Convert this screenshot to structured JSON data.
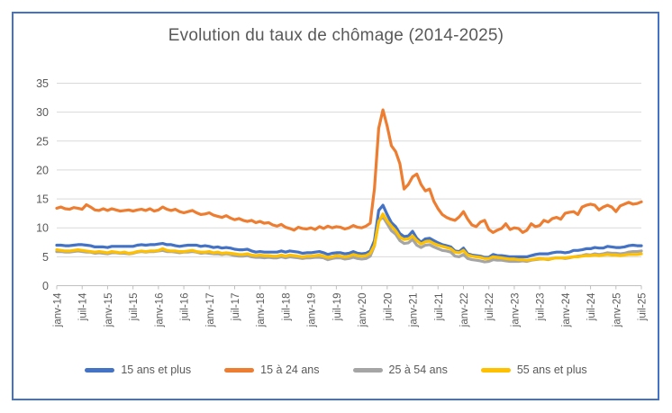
{
  "frame": {
    "border_color": "#4472C4",
    "background": "#ffffff"
  },
  "chart_data": {
    "type": "line",
    "title": "Evolution du taux de chômage (2014-2025)",
    "xlabel": "",
    "ylabel": "",
    "ylim": [
      0,
      35
    ],
    "y_ticks": [
      0,
      5,
      10,
      15,
      20,
      25,
      30,
      35
    ],
    "grid": true,
    "gridline_color": "#D9D9D9",
    "axis_color": "#BFBFBF",
    "tick_label_color": "#595959",
    "title_color": "#595959",
    "legend_position": "bottom",
    "n_points": 139,
    "x_tick_every": 6,
    "x_tick_labels": [
      "janv-14",
      "juil-14",
      "janv-15",
      "juil-15",
      "janv-16",
      "juil-16",
      "janv-17",
      "juil-17",
      "janv-18",
      "juil-18",
      "janv-19",
      "juil-19",
      "janv-20",
      "juil-20",
      "janv-21",
      "juil-21",
      "janv-22",
      "juil-22",
      "janv-23",
      "juil-23",
      "janv-24",
      "juil-24",
      "janv-25",
      "juil-25"
    ],
    "series": [
      {
        "name": "15 ans et plus",
        "color": "#4472C4",
        "values": [
          7.0,
          7.0,
          6.9,
          6.9,
          7.0,
          7.1,
          7.1,
          7.0,
          6.9,
          6.7,
          6.7,
          6.7,
          6.6,
          6.8,
          6.8,
          6.8,
          6.8,
          6.8,
          6.8,
          7.0,
          7.1,
          7.0,
          7.1,
          7.1,
          7.2,
          7.3,
          7.1,
          7.1,
          6.9,
          6.8,
          6.9,
          7.0,
          7.0,
          7.0,
          6.8,
          6.9,
          6.8,
          6.6,
          6.7,
          6.5,
          6.6,
          6.5,
          6.3,
          6.2,
          6.2,
          6.3,
          6.0,
          5.8,
          5.9,
          5.8,
          5.8,
          5.8,
          5.8,
          6.0,
          5.8,
          6.0,
          5.9,
          5.8,
          5.6,
          5.7,
          5.7,
          5.8,
          5.9,
          5.7,
          5.4,
          5.6,
          5.7,
          5.7,
          5.5,
          5.6,
          5.9,
          5.6,
          5.5,
          5.6,
          6.0,
          7.8,
          13.0,
          13.9,
          12.3,
          10.9,
          10.2,
          9.0,
          8.5,
          8.6,
          9.4,
          8.2,
          7.5,
          8.1,
          8.2,
          7.8,
          7.4,
          7.1,
          6.9,
          6.7,
          6.0,
          5.9,
          6.5,
          5.5,
          5.3,
          5.2,
          5.1,
          4.9,
          4.9,
          5.4,
          5.2,
          5.2,
          5.1,
          5.0,
          5.0,
          5.0,
          5.0,
          5.0,
          5.2,
          5.4,
          5.5,
          5.5,
          5.5,
          5.7,
          5.8,
          5.8,
          5.7,
          5.8,
          6.1,
          6.1,
          6.2,
          6.4,
          6.4,
          6.6,
          6.5,
          6.5,
          6.8,
          6.7,
          6.6,
          6.6,
          6.7,
          6.9,
          7.0,
          6.9,
          6.9
        ]
      },
      {
        "name": "15 à 24 ans",
        "color": "#ED7D31",
        "values": [
          13.4,
          13.6,
          13.3,
          13.2,
          13.5,
          13.4,
          13.2,
          14.0,
          13.6,
          13.1,
          13.0,
          13.3,
          13.0,
          13.3,
          13.1,
          12.9,
          13.0,
          13.1,
          12.9,
          13.1,
          13.2,
          13.0,
          13.3,
          12.9,
          13.1,
          13.6,
          13.2,
          13.0,
          13.2,
          12.8,
          12.6,
          12.8,
          13.0,
          12.6,
          12.3,
          12.4,
          12.6,
          12.2,
          12.0,
          11.8,
          12.1,
          11.7,
          11.4,
          11.6,
          11.3,
          11.1,
          11.3,
          10.9,
          11.1,
          10.8,
          10.9,
          10.5,
          10.3,
          10.6,
          10.1,
          9.9,
          9.6,
          10.1,
          9.9,
          9.8,
          10.0,
          9.7,
          10.2,
          9.9,
          10.3,
          10.0,
          10.2,
          10.1,
          9.8,
          10.0,
          10.4,
          10.1,
          10.0,
          10.3,
          10.8,
          16.8,
          27.2,
          30.4,
          27.6,
          24.2,
          23.2,
          21.1,
          16.7,
          17.5,
          18.8,
          19.3,
          17.5,
          16.4,
          16.7,
          14.6,
          13.3,
          12.3,
          11.8,
          11.5,
          11.3,
          11.9,
          12.8,
          11.5,
          10.5,
          10.2,
          11.0,
          11.3,
          9.7,
          9.2,
          9.6,
          9.9,
          10.7,
          9.7,
          10.0,
          9.9,
          9.2,
          9.6,
          10.7,
          10.2,
          10.4,
          11.3,
          11.0,
          11.6,
          11.8,
          11.5,
          12.5,
          12.7,
          12.8,
          12.3,
          13.6,
          13.9,
          14.1,
          13.9,
          13.1,
          13.6,
          13.9,
          13.6,
          12.8,
          13.8,
          14.1,
          14.4,
          14.1,
          14.2,
          14.5
        ]
      },
      {
        "name": "25 à 54 ans",
        "color": "#A5A5A5",
        "values": [
          5.9,
          5.9,
          5.8,
          5.8,
          5.9,
          6.0,
          5.9,
          5.8,
          5.8,
          5.6,
          5.7,
          5.6,
          5.5,
          5.7,
          5.7,
          5.6,
          5.6,
          5.5,
          5.6,
          5.8,
          5.9,
          5.8,
          5.9,
          5.9,
          6.0,
          6.1,
          5.9,
          5.9,
          5.8,
          5.7,
          5.8,
          5.8,
          5.9,
          5.8,
          5.6,
          5.7,
          5.6,
          5.5,
          5.5,
          5.4,
          5.5,
          5.4,
          5.2,
          5.1,
          5.1,
          5.2,
          5.0,
          4.9,
          4.9,
          4.8,
          4.9,
          4.8,
          4.8,
          5.0,
          4.8,
          5.0,
          4.9,
          4.8,
          4.7,
          4.8,
          4.8,
          4.9,
          4.9,
          4.8,
          4.5,
          4.7,
          4.8,
          4.8,
          4.6,
          4.7,
          4.9,
          4.7,
          4.6,
          4.7,
          5.1,
          6.9,
          11.2,
          11.9,
          10.7,
          9.5,
          8.9,
          7.8,
          7.3,
          7.4,
          8.0,
          7.0,
          6.6,
          7.0,
          7.1,
          6.7,
          6.4,
          6.1,
          6.0,
          5.8,
          5.1,
          5.0,
          5.4,
          4.7,
          4.5,
          4.4,
          4.3,
          4.1,
          4.2,
          4.5,
          4.4,
          4.4,
          4.3,
          4.2,
          4.2,
          4.2,
          4.3,
          4.2,
          4.4,
          4.5,
          4.6,
          4.6,
          4.5,
          4.7,
          4.8,
          4.8,
          4.7,
          4.8,
          5.0,
          5.1,
          5.2,
          5.4,
          5.3,
          5.5,
          5.4,
          5.5,
          5.7,
          5.6,
          5.6,
          5.5,
          5.6,
          5.8,
          5.9,
          5.9,
          6.0
        ]
      },
      {
        "name": "55 ans et plus",
        "color": "#FFC000",
        "values": [
          6.2,
          6.1,
          6.0,
          6.0,
          6.1,
          6.2,
          6.1,
          6.0,
          5.9,
          5.8,
          5.9,
          5.8,
          5.7,
          5.9,
          5.8,
          5.7,
          5.8,
          5.6,
          5.7,
          5.9,
          6.0,
          5.9,
          6.0,
          6.0,
          6.1,
          6.4,
          6.1,
          6.0,
          6.0,
          5.9,
          5.9,
          6.0,
          6.1,
          5.9,
          5.8,
          5.8,
          5.9,
          5.7,
          5.8,
          5.6,
          5.7,
          5.6,
          5.5,
          5.4,
          5.4,
          5.5,
          5.3,
          5.2,
          5.3,
          5.2,
          5.2,
          5.1,
          5.1,
          5.3,
          5.1,
          5.3,
          5.2,
          5.1,
          5.0,
          5.1,
          5.1,
          5.2,
          5.3,
          5.1,
          4.9,
          5.0,
          5.2,
          5.1,
          5.0,
          5.1,
          5.4,
          5.2,
          5.1,
          5.2,
          5.6,
          7.0,
          11.0,
          12.4,
          11.2,
          10.3,
          9.5,
          8.4,
          8.0,
          8.1,
          8.6,
          7.8,
          7.2,
          7.6,
          7.7,
          7.3,
          7.0,
          6.8,
          6.6,
          6.4,
          5.8,
          5.7,
          6.1,
          5.3,
          5.1,
          5.0,
          4.9,
          4.7,
          4.7,
          5.0,
          4.9,
          4.8,
          4.7,
          4.6,
          4.6,
          4.5,
          4.5,
          4.4,
          4.5,
          4.6,
          4.7,
          4.6,
          4.6,
          4.7,
          4.8,
          4.8,
          4.8,
          4.9,
          5.0,
          5.0,
          5.1,
          5.2,
          5.2,
          5.3,
          5.2,
          5.3,
          5.4,
          5.3,
          5.3,
          5.2,
          5.3,
          5.4,
          5.4,
          5.4,
          5.5
        ]
      }
    ]
  }
}
